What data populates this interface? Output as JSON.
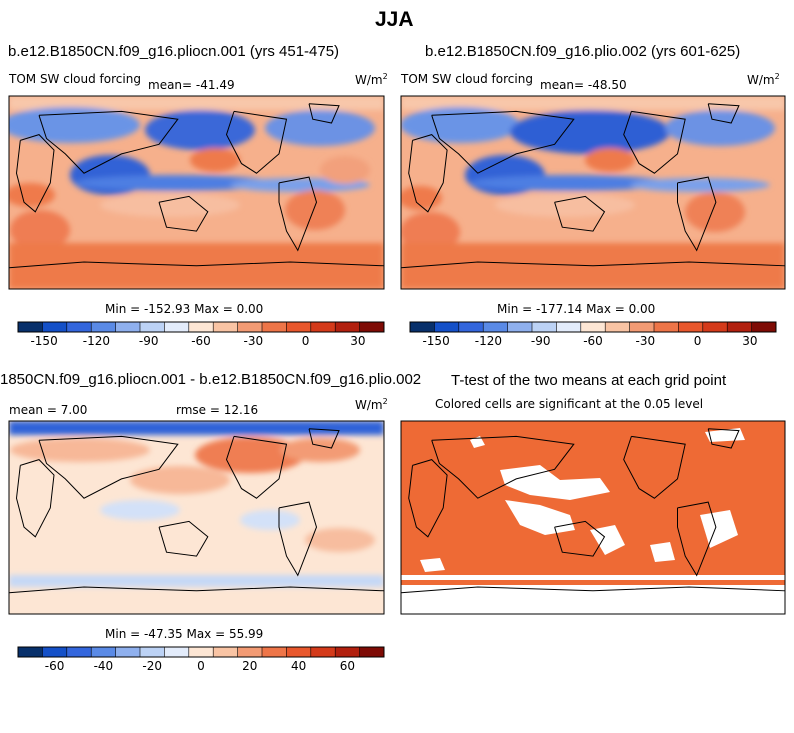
{
  "figure": {
    "title": "JJA"
  },
  "colors": {
    "scale": [
      "#08306b",
      "#1450c8",
      "#3366dd",
      "#5a8ae6",
      "#8fb0ee",
      "#bcd2f5",
      "#e3ecfb",
      "#fde6d4",
      "#f9c4a4",
      "#f39b74",
      "#ee7548",
      "#e8572c",
      "#d43a1a",
      "#b2200e",
      "#7e0b05"
    ],
    "significant": "#ee6a35"
  },
  "panels": [
    {
      "title": "b.e12.B1850CN.f09_g16.pliocn.001 (yrs 451-475)",
      "left_label": "TOM SW cloud forcing",
      "stat": "mean=  -41.49",
      "units": "W/m",
      "units_sup": "2",
      "minmax": "Min = -152.93 Max =   0.00",
      "colorbar_ticks": [
        "-150",
        "-120",
        "-90",
        "-60",
        "-30",
        "0",
        "30"
      ]
    },
    {
      "title": "b.e12.B1850CN.f09_g16.plio.002 (yrs 601-625)",
      "left_label": "TOM SW cloud forcing",
      "stat": "mean=  -48.50",
      "units": "W/m",
      "units_sup": "2",
      "minmax": "Min = -177.14 Max =   0.00",
      "colorbar_ticks": [
        "-150",
        "-120",
        "-90",
        "-60",
        "-30",
        "0",
        "30"
      ]
    },
    {
      "title": "1850CN.f09_g16.pliocn.001 - b.e12.B1850CN.f09_g16.plio.002",
      "left_label": "mean =   7.00",
      "stat": "rmse =  12.16",
      "units": "W/m",
      "units_sup": "2",
      "minmax": "Min = -47.35 Max =  55.99",
      "colorbar_ticks": [
        "-60",
        "-40",
        "-20",
        "0",
        "20",
        "40",
        "60"
      ]
    },
    {
      "title": "T-test of the two means at each grid point",
      "subtitle": "Colored cells are significant at the 0.05 level"
    }
  ],
  "chart_data": [
    {
      "type": "heatmap",
      "title": "b.e12.B1850CN.f09_g16.pliocn.001 (yrs 451-475)",
      "variable": "TOM SW cloud forcing",
      "units": "W/m^2",
      "mean": -41.49,
      "min": -152.93,
      "max": 0.0,
      "colorbar_levels": [
        -150,
        -135,
        -120,
        -105,
        -90,
        -75,
        -60,
        -45,
        -30,
        -15,
        0,
        15,
        30,
        45
      ],
      "colorbar_ticks": [
        -150,
        -120,
        -90,
        -60,
        -30,
        0,
        30
      ]
    },
    {
      "type": "heatmap",
      "title": "b.e12.B1850CN.f09_g16.plio.002 (yrs 601-625)",
      "variable": "TOM SW cloud forcing",
      "units": "W/m^2",
      "mean": -48.5,
      "min": -177.14,
      "max": 0.0,
      "colorbar_levels": [
        -150,
        -135,
        -120,
        -105,
        -90,
        -75,
        -60,
        -45,
        -30,
        -15,
        0,
        15,
        30,
        45
      ],
      "colorbar_ticks": [
        -150,
        -120,
        -90,
        -60,
        -30,
        0,
        30
      ]
    },
    {
      "type": "heatmap",
      "title": "1850CN.f09_g16.pliocn.001 - b.e12.B1850CN.f09_g16.plio.002",
      "units": "W/m^2",
      "mean": 7.0,
      "rmse": 12.16,
      "min": -47.35,
      "max": 55.99,
      "colorbar_levels": [
        -70,
        -60,
        -50,
        -40,
        -30,
        -20,
        -10,
        0,
        10,
        20,
        30,
        40,
        50,
        60,
        70
      ],
      "colorbar_ticks": [
        -60,
        -40,
        -20,
        0,
        20,
        40,
        60
      ]
    },
    {
      "type": "heatmap",
      "title": "T-test of the two means at each grid point",
      "subtitle": "Colored cells are significant at the 0.05 level"
    }
  ]
}
